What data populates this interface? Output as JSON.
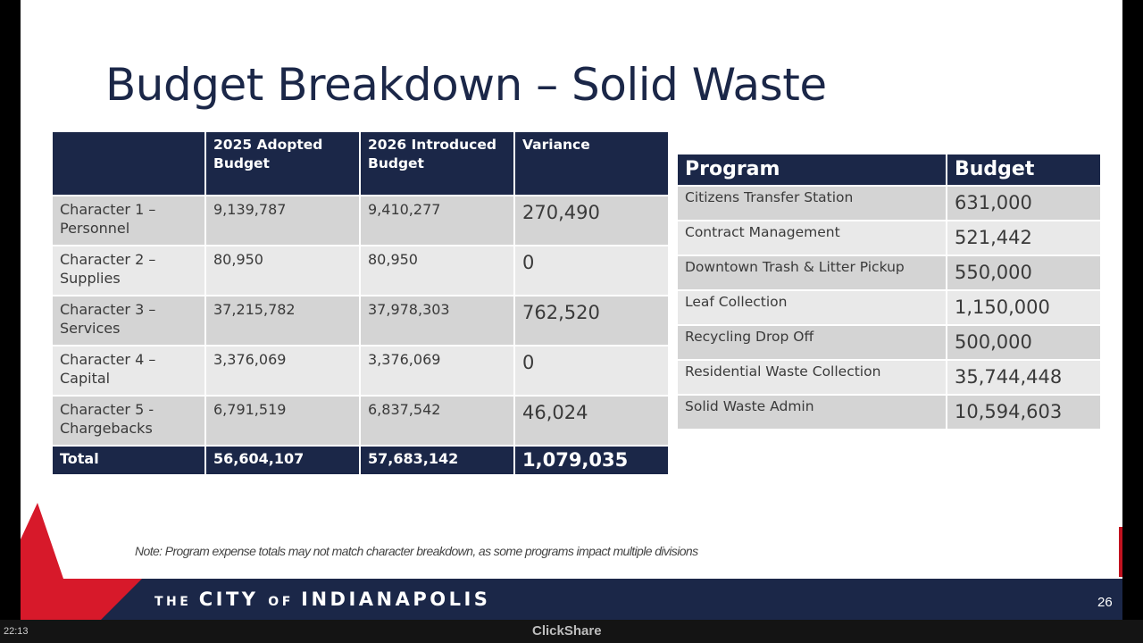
{
  "slide": {
    "title": "Budget Breakdown – Solid Waste",
    "note": "Note: Program expense totals may not match character breakdown, as some programs impact multiple divisions",
    "brand_the": "THE ",
    "brand_city": "CITY ",
    "brand_of": "OF ",
    "brand_indianapolis": "INDIANAPOLIS",
    "page_number": "26"
  },
  "character_table": {
    "headers": [
      "",
      "2025 Adopted Budget",
      "2026 Introduced Budget",
      "Variance"
    ],
    "rows": [
      {
        "label": "Character 1 – Personnel",
        "adopted_2025": "9,139,787",
        "introduced_2026": "9,410,277",
        "variance": "270,490"
      },
      {
        "label": "Character 2 – Supplies",
        "adopted_2025": "80,950",
        "introduced_2026": "80,950",
        "variance": "0"
      },
      {
        "label": "Character 3 – Services",
        "adopted_2025": "37,215,782",
        "introduced_2026": "37,978,303",
        "variance": "762,520"
      },
      {
        "label": "Character 4 – Capital",
        "adopted_2025": "3,376,069",
        "introduced_2026": "3,376,069",
        "variance": "0"
      },
      {
        "label": "Character 5 - Chargebacks",
        "adopted_2025": "6,791,519",
        "introduced_2026": "6,837,542",
        "variance": "46,024"
      }
    ],
    "total": {
      "label": "Total",
      "adopted_2025": "56,604,107",
      "introduced_2026": "57,683,142",
      "variance": "1,079,035"
    }
  },
  "program_table": {
    "headers": [
      "Program",
      "Budget"
    ],
    "rows": [
      {
        "program": "Citizens Transfer Station",
        "budget": "631,000"
      },
      {
        "program": "Contract Management",
        "budget": "521,442"
      },
      {
        "program": "Downtown Trash & Litter Pickup",
        "budget": "550,000"
      },
      {
        "program": "Leaf Collection",
        "budget": "1,150,000"
      },
      {
        "program": "Recycling Drop Off",
        "budget": "500,000"
      },
      {
        "program": "Residential Waste Collection",
        "budget": "35,744,448"
      },
      {
        "program": "Solid Waste Admin",
        "budget": "10,594,603"
      }
    ]
  },
  "status_bar": {
    "clock": "22:13",
    "app_name": "ClickShare"
  },
  "colors": {
    "navy": "#1b2748",
    "red": "#d7192a",
    "row_dark": "#d4d4d4",
    "row_light": "#e9e9e9"
  }
}
